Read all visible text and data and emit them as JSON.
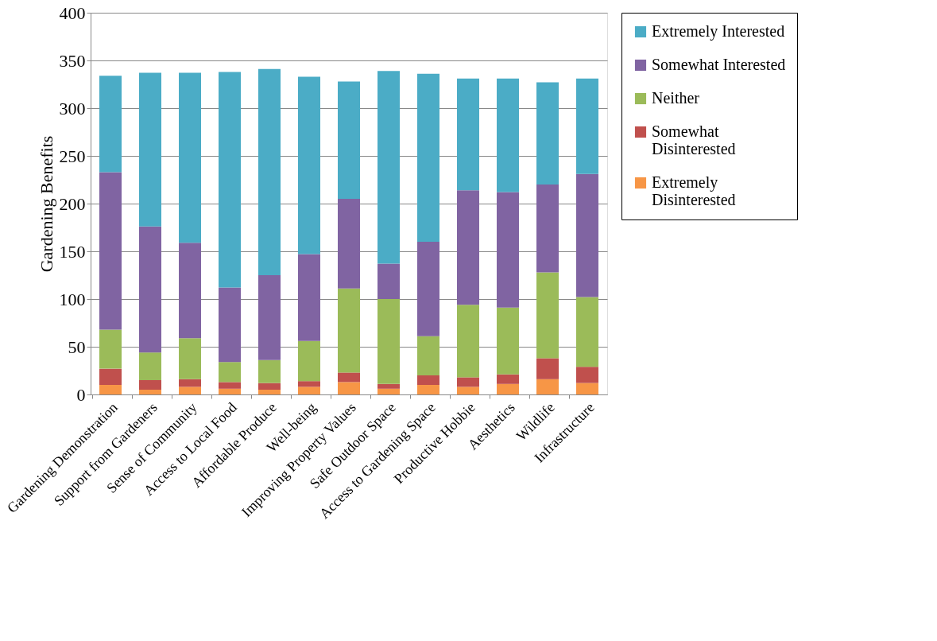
{
  "chart_data": {
    "type": "bar",
    "stacked": true,
    "ylabel": "Gardening Benefits",
    "categories": [
      "Gardening Demonstration",
      "Support from Gardeners",
      "Sense of Community",
      "Access to Local Food",
      "Affordable Produce",
      "Well-being",
      "Improving Property Values",
      "Safe Outdoor Space",
      "Access to Gardening Space",
      "Productive Hobbie",
      "Aesthetics",
      "Wildlife",
      "Infrastructure"
    ],
    "series": [
      {
        "name": "Extremely Disinterested",
        "color": "#f79646",
        "values": [
          10,
          5,
          8,
          6,
          5,
          8,
          13,
          6,
          10,
          8,
          11,
          16,
          12
        ]
      },
      {
        "name": "Somewhat Disinterested",
        "color": "#c0504d",
        "values": [
          17,
          10,
          8,
          7,
          7,
          6,
          10,
          5,
          10,
          10,
          10,
          22,
          17
        ]
      },
      {
        "name": "Neither",
        "color": "#9bbb59",
        "values": [
          41,
          29,
          43,
          21,
          24,
          42,
          88,
          89,
          41,
          76,
          70,
          90,
          73
        ]
      },
      {
        "name": "Somewhat Interested",
        "color": "#8064a2",
        "values": [
          165,
          132,
          100,
          78,
          89,
          91,
          94,
          37,
          99,
          120,
          121,
          92,
          129
        ]
      },
      {
        "name": "Extremely Interested",
        "color": "#4bacc6",
        "values": [
          101,
          161,
          178,
          226,
          216,
          186,
          123,
          202,
          176,
          117,
          119,
          107,
          100
        ]
      }
    ],
    "ylim": [
      0,
      400
    ],
    "yticks": [
      0,
      50,
      100,
      150,
      200,
      250,
      300,
      350,
      400
    ],
    "grid": "y",
    "legend": "right"
  }
}
